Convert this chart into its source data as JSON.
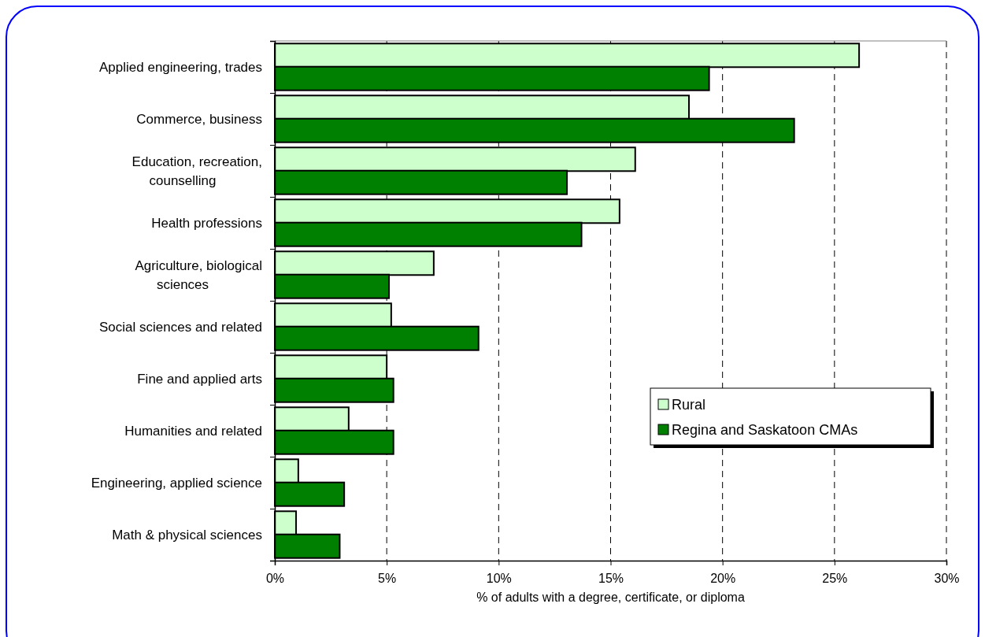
{
  "chart_data": {
    "type": "bar",
    "orientation": "horizontal",
    "xlabel": "% of adults with a degree, certificate, or diploma",
    "categories": [
      "Applied engineering, trades",
      "Commerce, business",
      "Education, recreation, counselling",
      "Health professions",
      "Agriculture, biological sciences",
      "Social sciences and related",
      "Fine and applied arts",
      "Humanities and related",
      "Engineering, applied science",
      "Math & physical sciences"
    ],
    "series": [
      {
        "name": "Rural",
        "color": "#ccffcc",
        "values": [
          26.1,
          18.5,
          16.1,
          15.4,
          7.1,
          5.2,
          5.0,
          3.3,
          1.05,
          0.95
        ]
      },
      {
        "name": "Regina and Saskatoon CMAs",
        "color": "#008000",
        "values": [
          19.4,
          23.2,
          13.05,
          13.7,
          5.1,
          9.1,
          5.3,
          5.3,
          3.1,
          2.9
        ]
      }
    ],
    "xlim": [
      0,
      30
    ],
    "xticks": [
      {
        "value": 0,
        "label": "0%"
      },
      {
        "value": 5,
        "label": "5%"
      },
      {
        "value": 10,
        "label": "10%"
      },
      {
        "value": 15,
        "label": "15%"
      },
      {
        "value": 20,
        "label": "20%"
      },
      {
        "value": 25,
        "label": "25%"
      },
      {
        "value": 30,
        "label": "30%"
      }
    ],
    "grid": "x",
    "legend": "right"
  }
}
